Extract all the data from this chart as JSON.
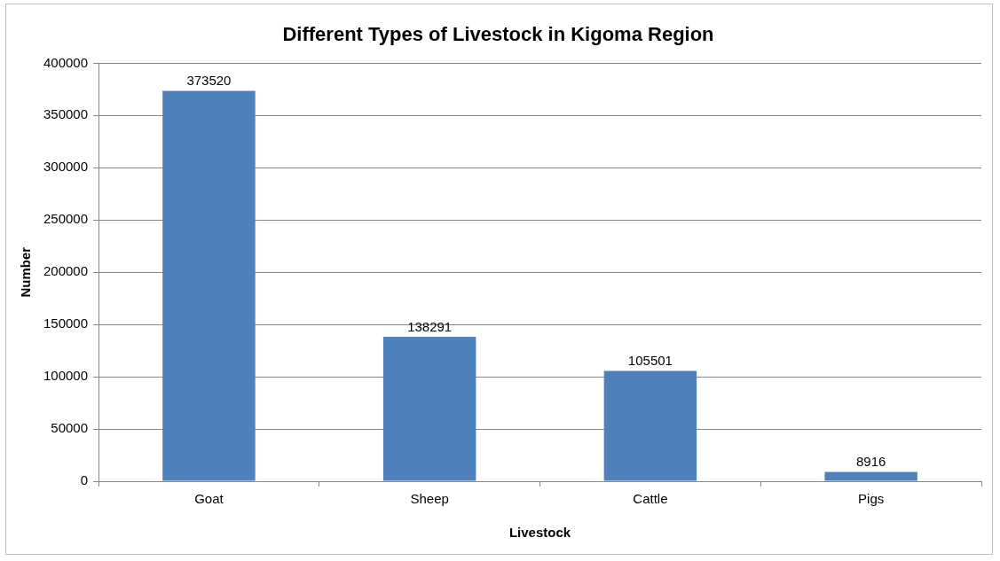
{
  "chart_data": {
    "type": "bar",
    "title": "Different Types of Livestock in Kigoma Region",
    "xlabel": "Livestock",
    "ylabel": "Number",
    "categories": [
      "Goat",
      "Sheep",
      "Cattle",
      "Pigs"
    ],
    "values": [
      373520,
      138291,
      105501,
      8916
    ],
    "color": "#4f81bd",
    "ylim": [
      0,
      400000
    ],
    "yticks": [
      0,
      50000,
      100000,
      150000,
      200000,
      250000,
      300000,
      350000,
      400000
    ],
    "grid": "y",
    "data_labels": true
  }
}
